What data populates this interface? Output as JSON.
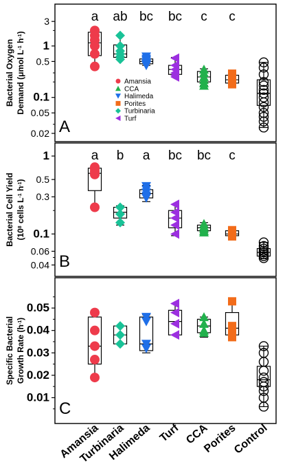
{
  "chart_data": [
    {
      "type": "box",
      "panel_letter": "A",
      "ylabel_line1": "Bacterial Oxygen",
      "ylabel_line2_prefix": "Demand (μmol L",
      "ylabel_sup1": "-1",
      "ylabel_mid": " h",
      "ylabel_sup2": "-1",
      "ylabel_suffix": ")",
      "yscale": "log",
      "ylim": [
        0.02,
        4.5
      ],
      "yticks": [
        {
          "value": 3,
          "label": "3",
          "bold": false
        },
        {
          "value": 1,
          "label": "1",
          "bold": true
        },
        {
          "value": 0.5,
          "label": "0.5",
          "bold": false
        },
        {
          "value": 0.1,
          "label": "0.1",
          "bold": true
        },
        {
          "value": 0.05,
          "label": "0.05",
          "bold": false
        },
        {
          "value": 0.02,
          "label": "0.02",
          "bold": false
        }
      ],
      "minor_ticks": [
        2,
        0.3,
        0.2,
        0.03
      ],
      "legend": {
        "placement": "left-center",
        "entries": [
          {
            "label": "Amansia",
            "color": "#ee3b4b",
            "marker": "circle"
          },
          {
            "label": "CCA",
            "color": "#22b14c",
            "marker": "triangle-up"
          },
          {
            "label": "Halimeda",
            "color": "#1f6fe8",
            "marker": "triangle-down"
          },
          {
            "label": "Porites",
            "color": "#f26c1a",
            "marker": "square"
          },
          {
            "label": "Turbinaria",
            "color": "#19c297",
            "marker": "diamond"
          },
          {
            "label": "Turf",
            "color": "#9c2fe0",
            "marker": "triangle-left"
          }
        ]
      },
      "groups": [
        {
          "name": "Amansia",
          "sig": "a",
          "color": "#ee3b4b",
          "marker": "circle",
          "box": {
            "min": 0.4,
            "q1": 0.65,
            "median": 1.15,
            "q3": 1.85,
            "max": 2.0
          },
          "points": [
            2.0,
            1.6,
            1.3,
            1.0,
            0.7,
            0.4
          ]
        },
        {
          "name": "Turbinaria",
          "sig": "ab",
          "color": "#19c297",
          "marker": "diamond",
          "box": {
            "min": 0.55,
            "q1": 0.6,
            "median": 0.7,
            "q3": 1.05,
            "max": 1.6
          },
          "points": [
            1.6,
            1.0,
            0.8,
            0.7,
            0.62,
            0.55
          ]
        },
        {
          "name": "Halimeda",
          "sig": "bc",
          "color": "#1f6fe8",
          "marker": "triangle-down",
          "box": {
            "min": 0.42,
            "q1": 0.45,
            "median": 0.5,
            "q3": 0.56,
            "max": 0.62
          },
          "points": [
            0.62,
            0.56,
            0.52,
            0.48,
            0.45,
            0.42
          ]
        },
        {
          "name": "Turf",
          "sig": "bc",
          "color": "#9c2fe0",
          "marker": "triangle-left",
          "box": {
            "min": 0.25,
            "q1": 0.28,
            "median": 0.35,
            "q3": 0.42,
            "max": 0.6
          },
          "points": [
            0.58,
            0.42,
            0.35,
            0.3,
            0.27,
            0.25
          ]
        },
        {
          "name": "CCA",
          "sig": "c",
          "color": "#22b14c",
          "marker": "triangle-up",
          "box": {
            "min": 0.17,
            "q1": 0.2,
            "median": 0.25,
            "q3": 0.32,
            "max": 0.36
          },
          "points": [
            0.35,
            0.3,
            0.25,
            0.22,
            0.19,
            0.17
          ]
        },
        {
          "name": "Porites",
          "sig": "c",
          "color": "#f26c1a",
          "marker": "square",
          "box": {
            "min": 0.18,
            "q1": 0.19,
            "median": 0.22,
            "q3": 0.27,
            "max": 0.3
          },
          "points": [
            0.29,
            0.26,
            0.23,
            0.21,
            0.19,
            0.18
          ]
        },
        {
          "name": "Control",
          "sig": "",
          "color": "#000000",
          "marker": "open-circle",
          "box": {
            "min": 0.026,
            "q1": 0.07,
            "median": 0.12,
            "q3": 0.22,
            "max": 0.48
          },
          "points": [
            0.48,
            0.38,
            0.28,
            0.2,
            0.17,
            0.14,
            0.12,
            0.1,
            0.08,
            0.065,
            0.05,
            0.042,
            0.034,
            0.026
          ]
        }
      ]
    },
    {
      "type": "box",
      "panel_letter": "B",
      "ylabel_line1": "Bacterial Cell Yield",
      "ylabel_line2_prefix": "(10",
      "ylabel_sup1": "8",
      "ylabel_mid": " cells L",
      "ylabel_sup2": "-1",
      "ylabel_mid2": " h",
      "ylabel_sup3": "-1",
      "ylabel_suffix": ")",
      "yscale": "log",
      "ylim": [
        0.035,
        1.2
      ],
      "yticks": [
        {
          "value": 1,
          "label": "1",
          "bold": true
        },
        {
          "value": 0.5,
          "label": "0.5",
          "bold": false
        },
        {
          "value": 0.3,
          "label": "0.3",
          "bold": false
        },
        {
          "value": 0.1,
          "label": "0.1",
          "bold": true
        },
        {
          "value": 0.06,
          "label": "0.06",
          "bold": false
        },
        {
          "value": 0.04,
          "label": "0.04",
          "bold": false
        }
      ],
      "minor_ticks": [
        0.2,
        0.05
      ],
      "groups": [
        {
          "name": "Amansia",
          "sig": "a",
          "color": "#ee3b4b",
          "marker": "circle",
          "box": {
            "min": 0.22,
            "q1": 0.36,
            "median": 0.6,
            "q3": 0.7,
            "max": 0.72
          },
          "points": [
            0.72,
            0.68,
            0.63,
            0.58,
            0.22
          ]
        },
        {
          "name": "Turbinaria",
          "sig": "b",
          "color": "#19c297",
          "marker": "diamond",
          "box": {
            "min": 0.13,
            "q1": 0.16,
            "median": 0.19,
            "q3": 0.22,
            "max": 0.23
          },
          "points": [
            0.22,
            0.18,
            0.14
          ]
        },
        {
          "name": "Halimeda",
          "sig": "a",
          "color": "#1f6fe8",
          "marker": "triangle-down",
          "box": {
            "min": 0.26,
            "q1": 0.29,
            "median": 0.33,
            "q3": 0.37,
            "max": 0.42
          },
          "points": [
            0.41,
            0.37,
            0.34,
            0.31,
            0.29
          ]
        },
        {
          "name": "Turf",
          "sig": "bc",
          "color": "#9c2fe0",
          "marker": "triangle-left",
          "box": {
            "min": 0.095,
            "q1": 0.12,
            "median": 0.16,
            "q3": 0.2,
            "max": 0.24
          },
          "points": [
            0.24,
            0.19,
            0.16,
            0.13,
            0.1
          ]
        },
        {
          "name": "CCA",
          "sig": "bc",
          "color": "#22b14c",
          "marker": "triangle-up",
          "box": {
            "min": 0.105,
            "q1": 0.11,
            "median": 0.12,
            "q3": 0.13,
            "max": 0.14
          },
          "points": [
            0.135,
            0.125,
            0.118,
            0.11,
            0.105
          ]
        },
        {
          "name": "Porites",
          "sig": "c",
          "color": "#f26c1a",
          "marker": "square",
          "box": {
            "min": 0.09,
            "q1": 0.095,
            "median": 0.1,
            "q3": 0.11,
            "max": 0.115
          },
          "points": [
            0.112,
            0.104,
            0.098,
            0.093
          ]
        },
        {
          "name": "Control",
          "sig": "",
          "color": "#000000",
          "marker": "open-circle",
          "box": {
            "min": 0.048,
            "q1": 0.052,
            "median": 0.058,
            "q3": 0.065,
            "max": 0.078
          },
          "points": [
            0.078,
            0.07,
            0.065,
            0.061,
            0.058,
            0.055,
            0.052,
            0.049
          ]
        }
      ]
    },
    {
      "type": "box",
      "panel_letter": "C",
      "ylabel_line1": "Specific Bacterial",
      "ylabel_line2_prefix": "Growth Rate (h",
      "ylabel_sup1": "-1",
      "ylabel_suffix": ")",
      "yscale": "linear",
      "ylim": [
        0.004,
        0.058
      ],
      "yticks": [
        {
          "value": 0.05,
          "label": "0.05",
          "bold": true
        },
        {
          "value": 0.04,
          "label": "0.04",
          "bold": true
        },
        {
          "value": 0.03,
          "label": "0.03",
          "bold": true
        },
        {
          "value": 0.02,
          "label": "0.02",
          "bold": true
        },
        {
          "value": 0.01,
          "label": "0.01",
          "bold": true
        }
      ],
      "minor_ticks": [
        0.055,
        0.045,
        0.035,
        0.025,
        0.015,
        0.005
      ],
      "groups": [
        {
          "name": "Amansia",
          "sig": "",
          "color": "#ee3b4b",
          "marker": "circle",
          "box": {
            "min": 0.019,
            "q1": 0.025,
            "median": 0.033,
            "q3": 0.046,
            "max": 0.049
          },
          "points": [
            0.048,
            0.04,
            0.033,
            0.027,
            0.019
          ]
        },
        {
          "name": "Turbinaria",
          "sig": "",
          "color": "#19c297",
          "marker": "diamond",
          "box": {
            "min": 0.034,
            "q1": 0.034,
            "median": 0.038,
            "q3": 0.042,
            "max": 0.042
          },
          "points": [
            0.042,
            0.038,
            0.034
          ]
        },
        {
          "name": "Halimeda",
          "sig": "",
          "color": "#1f6fe8",
          "marker": "triangle-down",
          "box": {
            "min": 0.03,
            "q1": 0.031,
            "median": 0.034,
            "q3": 0.046,
            "max": 0.047
          },
          "points": [
            0.046,
            0.044,
            0.034,
            0.032
          ]
        },
        {
          "name": "Turf",
          "sig": "",
          "color": "#9c2fe0",
          "marker": "triangle-left",
          "box": {
            "min": 0.038,
            "q1": 0.038,
            "median": 0.044,
            "q3": 0.049,
            "max": 0.052
          },
          "points": [
            0.052,
            0.048,
            0.043,
            0.038
          ]
        },
        {
          "name": "CCA",
          "sig": "",
          "color": "#22b14c",
          "marker": "triangle-up",
          "box": {
            "min": 0.037,
            "q1": 0.039,
            "median": 0.042,
            "q3": 0.045,
            "max": 0.046
          },
          "points": [
            0.046,
            0.043,
            0.04,
            0.039
          ]
        },
        {
          "name": "Porites",
          "sig": "",
          "color": "#f26c1a",
          "marker": "square",
          "box": {
            "min": 0.036,
            "q1": 0.038,
            "median": 0.041,
            "q3": 0.048,
            "max": 0.053
          },
          "points": [
            0.053,
            0.042,
            0.039,
            0.037
          ]
        },
        {
          "name": "Control",
          "sig": "",
          "color": "#000000",
          "marker": "open-circle",
          "box": {
            "min": 0.006,
            "q1": 0.015,
            "median": 0.018,
            "q3": 0.024,
            "max": 0.033
          },
          "points": [
            0.033,
            0.03,
            0.026,
            0.022,
            0.019,
            0.017,
            0.015,
            0.013,
            0.01,
            0.006
          ]
        }
      ]
    }
  ],
  "x_categories": [
    "Amansia",
    "Turbinaria",
    "Halimeda",
    "Turf",
    "CCA",
    "Porites",
    "Control"
  ]
}
